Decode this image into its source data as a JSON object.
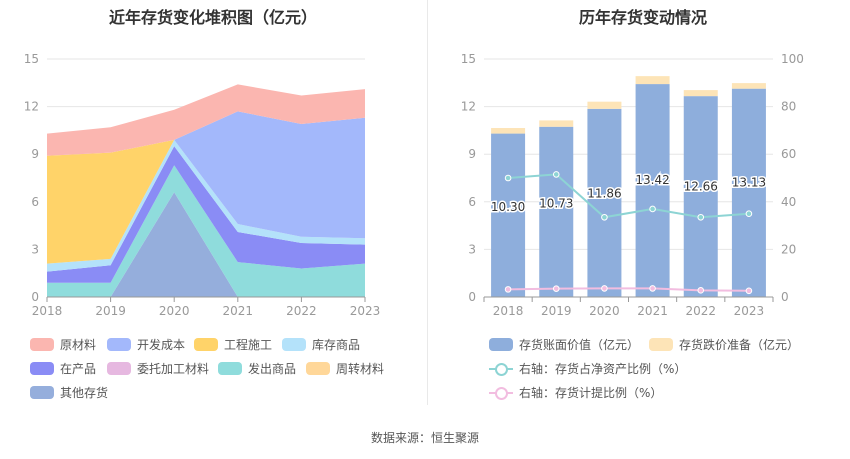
{
  "source_label": "数据来源：恒生聚源",
  "chart_data": [
    {
      "type": "area",
      "title": "近年存货变化堆积图（亿元）",
      "x": [
        "2018",
        "2019",
        "2020",
        "2021",
        "2022",
        "2023"
      ],
      "ylim": [
        0,
        15
      ],
      "yticks": [
        "0",
        "3",
        "6",
        "9",
        "12",
        "15"
      ],
      "grid": true,
      "series": [
        {
          "name": "其他存货",
          "color": "#95aedc",
          "values": [
            0,
            0,
            6.6,
            0,
            0,
            0
          ]
        },
        {
          "name": "周转材料",
          "color": "#ffd799",
          "values": [
            0,
            0,
            0,
            0,
            0,
            0
          ]
        },
        {
          "name": "发出商品",
          "color": "#8fdcdc",
          "values": [
            0.9,
            0.9,
            1.7,
            2.2,
            1.8,
            2.1
          ]
        },
        {
          "name": "委托加工材料",
          "color": "#e6b8e0",
          "values": [
            0,
            0,
            0,
            0,
            0,
            0
          ]
        },
        {
          "name": "在产品",
          "color": "#8a8cf5",
          "values": [
            0.7,
            1.1,
            1.2,
            1.9,
            1.6,
            1.2
          ]
        },
        {
          "name": "库存商品",
          "color": "#b4e2fa",
          "values": [
            0.5,
            0.4,
            0.4,
            0.5,
            0.4,
            0.4
          ]
        },
        {
          "name": "工程施工",
          "color": "#ffd369",
          "values": [
            6.8,
            6.7,
            0,
            0,
            0,
            0
          ]
        },
        {
          "name": "开发成本",
          "color": "#a3b8fb",
          "values": [
            0,
            0,
            0,
            7.1,
            7.1,
            7.6
          ]
        },
        {
          "name": "原材料",
          "color": "#fbb6b0",
          "values": [
            1.4,
            1.6,
            1.9,
            1.7,
            1.8,
            1.8
          ]
        }
      ],
      "legend": [
        "原材料",
        "开发成本",
        "工程施工",
        "库存商品",
        "在产品",
        "委托加工材料",
        "发出商品",
        "周转材料",
        "其他存货"
      ],
      "legend_placement": "bottom"
    },
    {
      "type": "bar",
      "title": "历年存货变动情况",
      "categories": [
        "2018",
        "2019",
        "2020",
        "2021",
        "2022",
        "2023"
      ],
      "ylim": [
        0,
        15
      ],
      "yticks": [
        "0",
        "3",
        "6",
        "9",
        "12",
        "15"
      ],
      "y2lim": [
        0,
        100
      ],
      "y2ticks": [
        "0",
        "20",
        "40",
        "60",
        "80",
        "100"
      ],
      "grid": true,
      "series": [
        {
          "name": "存货账面价值（亿元）",
          "color": "#8eaedc",
          "values": [
            10.3,
            10.73,
            11.86,
            13.42,
            12.66,
            13.13
          ]
        },
        {
          "name": "存货跌价准备（亿元）",
          "color": "#fde4b7",
          "values": [
            0.35,
            0.4,
            0.45,
            0.5,
            0.38,
            0.35
          ]
        },
        {
          "name": "右轴：存货占净资产比例（%）",
          "color": "#8dd4d4",
          "axis": "right",
          "values": [
            50,
            51.5,
            33.5,
            37,
            33.5,
            35
          ]
        },
        {
          "name": "右轴：存货计提比例（%）",
          "color": "#f2bde0",
          "axis": "right",
          "values": [
            3.2,
            3.5,
            3.6,
            3.6,
            2.8,
            2.6
          ]
        }
      ],
      "data_labels": [
        "10.30",
        "10.73",
        "11.86",
        "13.42",
        "12.66",
        "13.13"
      ],
      "legend_placement": "bottom"
    }
  ]
}
